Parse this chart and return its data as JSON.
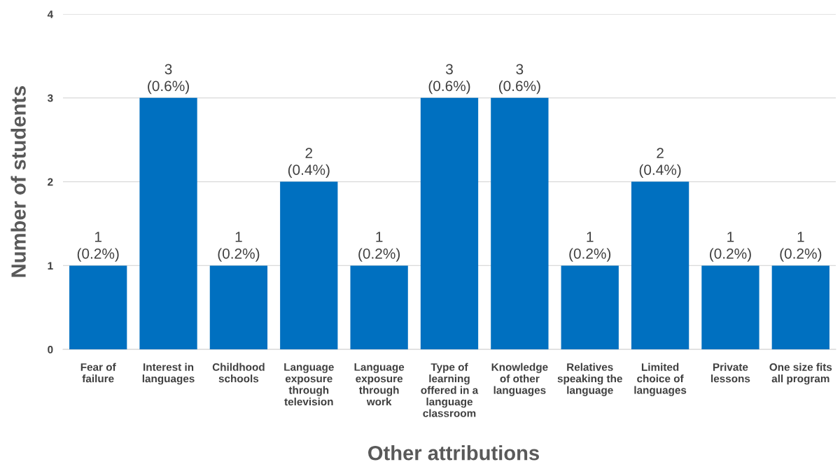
{
  "chart_data": {
    "type": "bar",
    "xlabel": "Other attributions",
    "ylabel": "Number of students",
    "categories": [
      "Fear of\nfailure",
      "Interest in\nlanguages",
      "Childhood\nschools",
      "Language\nexposure\nthrough\ntelevision",
      "Language\nexposure\nthrough\nwork",
      "Type of\nlearning\noffered in a\nlanguage\nclassroom",
      "Knowledge\nof other\nlanguages",
      "Relatives\nspeaking the\nlanguage",
      "Limited\nchoice of\nlanguages",
      "Private\nlessons",
      "One size fits\nall program"
    ],
    "values": [
      1,
      3,
      1,
      2,
      1,
      3,
      3,
      1,
      2,
      1,
      1
    ],
    "value_labels": [
      "1\n(0.2%)",
      "3\n(0.6%)",
      "1\n(0.2%)",
      "2\n(0.4%)",
      "1\n(0.2%)",
      "3\n(0.6%)",
      "3\n(0.6%)",
      "1\n(0.2%)",
      "2\n(0.4%)",
      "1\n(0.2%)",
      "1\n(0.2%)"
    ],
    "color": "#0070c0",
    "ylim": [
      0,
      4
    ],
    "yticks": [
      0,
      1,
      2,
      3,
      4
    ],
    "grid": "y"
  }
}
